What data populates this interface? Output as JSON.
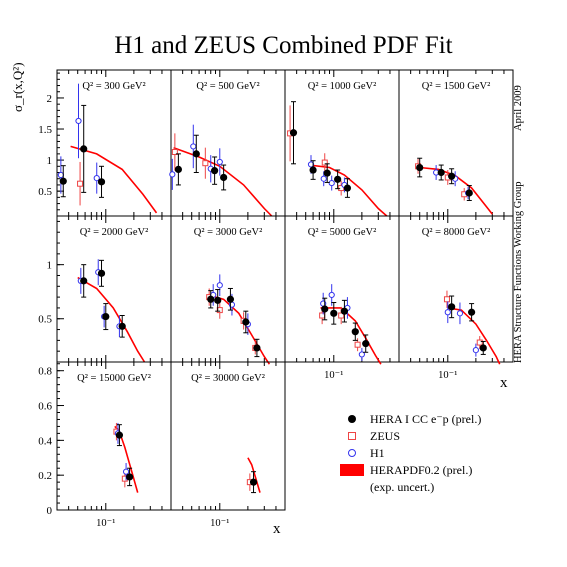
{
  "title": "H1 and ZEUS Combined PDF Fit",
  "side_note": {
    "date": "April 2009",
    "group": "HERA Structure Functions Working Group"
  },
  "y_axis_label": "σ_r(x,Q²)",
  "x_axis_label": "x",
  "colors": {
    "hera": "#000000",
    "zeus": "#ee4444",
    "h1": "#3333ee",
    "fit": "#ff0000"
  },
  "legend": [
    {
      "key": "hera",
      "label": "HERA I CC e⁻p (prel.)"
    },
    {
      "key": "zeus",
      "label": "ZEUS"
    },
    {
      "key": "h1",
      "label": "H1"
    },
    {
      "key": "fit",
      "label": "HERAPDF0.2 (prel.)"
    },
    {
      "key": "fit_note",
      "label": "(exp. uncert.)"
    }
  ],
  "chart_data": {
    "type": "scatter",
    "x_scale": "log",
    "xlim": [
      0.03,
      0.5
    ],
    "x_tick_label": "10⁻¹",
    "rows": [
      {
        "ylim": [
          0.1,
          2.45
        ],
        "yticks": [
          0.5,
          1,
          1.5,
          2
        ]
      },
      {
        "ylim": [
          0.1,
          1.45
        ],
        "yticks": [
          0.5,
          1
        ]
      },
      {
        "ylim": [
          0,
          0.85
        ],
        "yticks": [
          0,
          0.2,
          0.4,
          0.6,
          0.8
        ]
      }
    ],
    "panels": [
      {
        "label": "Q² = 300 GeV²",
        "row": 0,
        "col": 0,
        "fit": [
          [
            0.042,
            1.22
          ],
          [
            0.08,
            1.1
          ],
          [
            0.15,
            0.85
          ],
          [
            0.25,
            0.45
          ],
          [
            0.35,
            0.15
          ]
        ],
        "hera": [
          [
            0.035,
            0.66,
            0.25
          ],
          [
            0.058,
            1.18,
            0.7
          ],
          [
            0.09,
            0.65,
            0.25
          ]
        ],
        "zeus": [
          [
            0.053,
            0.62,
            0.35
          ]
        ],
        "h1": [
          [
            0.033,
            0.76,
            0.3
          ],
          [
            0.051,
            1.63,
            0.6
          ],
          [
            0.08,
            0.71,
            0.25
          ]
        ]
      },
      {
        "label": "Q² = 500 GeV²",
        "row": 0,
        "col": 1,
        "fit": [
          [
            0.032,
            1.2
          ],
          [
            0.06,
            1.05
          ],
          [
            0.1,
            0.9
          ],
          [
            0.18,
            0.6
          ],
          [
            0.3,
            0.22
          ],
          [
            0.36,
            0.1
          ]
        ],
        "hera": [
          [
            0.036,
            0.85,
            0.25
          ],
          [
            0.056,
            1.1,
            0.3
          ],
          [
            0.088,
            0.83,
            0.22
          ],
          [
            0.11,
            0.72,
            0.2
          ]
        ],
        "zeus": [
          [
            0.033,
            1.13,
            0.3
          ],
          [
            0.07,
            0.95,
            0.25
          ]
        ],
        "h1": [
          [
            0.031,
            0.77,
            0.25
          ],
          [
            0.052,
            1.22,
            0.35
          ],
          [
            0.08,
            0.86,
            0.22
          ],
          [
            0.1,
            0.97,
            0.22
          ]
        ]
      },
      {
        "label": "Q² = 1000 GeV²",
        "row": 0,
        "col": 2,
        "fit": [
          [
            0.055,
            0.92
          ],
          [
            0.09,
            0.88
          ],
          [
            0.13,
            0.76
          ],
          [
            0.2,
            0.52
          ],
          [
            0.3,
            0.22
          ],
          [
            0.37,
            0.1
          ]
        ],
        "hera": [
          [
            0.037,
            1.44,
            0.5
          ],
          [
            0.06,
            0.84,
            0.15
          ],
          [
            0.085,
            0.79,
            0.15
          ],
          [
            0.11,
            0.69,
            0.15
          ],
          [
            0.14,
            0.55,
            0.15
          ]
        ],
        "zeus": [
          [
            0.034,
            1.43,
            0.45
          ],
          [
            0.08,
            0.96,
            0.15
          ],
          [
            0.12,
            0.55,
            0.12
          ]
        ],
        "h1": [
          [
            0.057,
            0.93,
            0.15
          ],
          [
            0.078,
            0.7,
            0.12
          ],
          [
            0.095,
            0.63,
            0.12
          ],
          [
            0.13,
            0.6,
            0.12
          ]
        ]
      },
      {
        "label": "Q² = 1500 GeV²",
        "row": 0,
        "col": 3,
        "fit": [
          [
            0.05,
            0.88
          ],
          [
            0.08,
            0.85
          ],
          [
            0.12,
            0.75
          ],
          [
            0.18,
            0.55
          ],
          [
            0.26,
            0.25
          ],
          [
            0.3,
            0.13
          ]
        ],
        "hera": [
          [
            0.05,
            0.88,
            0.15
          ],
          [
            0.085,
            0.8,
            0.12
          ],
          [
            0.11,
            0.74,
            0.12
          ],
          [
            0.17,
            0.47,
            0.12
          ]
        ],
        "zeus": [
          [
            0.048,
            0.9,
            0.12
          ],
          [
            0.1,
            0.72,
            0.12
          ],
          [
            0.15,
            0.45,
            0.1
          ]
        ],
        "h1": [
          [
            0.075,
            0.8,
            0.12
          ],
          [
            0.12,
            0.7,
            0.12
          ],
          [
            0.165,
            0.47,
            0.1
          ]
        ]
      },
      {
        "label": "Q² = 2000 GeV²",
        "row": 1,
        "col": 0,
        "fit": [
          [
            0.05,
            0.88
          ],
          [
            0.08,
            0.78
          ],
          [
            0.12,
            0.6
          ],
          [
            0.17,
            0.38
          ],
          [
            0.22,
            0.2
          ],
          [
            0.26,
            0.1
          ]
        ],
        "hera": [
          [
            0.058,
            0.85,
            0.15
          ],
          [
            0.09,
            0.92,
            0.12
          ],
          [
            0.1,
            0.52,
            0.12
          ],
          [
            0.15,
            0.43,
            0.1
          ]
        ],
        "zeus": [],
        "h1": [
          [
            0.054,
            0.85,
            0.12
          ],
          [
            0.083,
            0.93,
            0.12
          ],
          [
            0.096,
            0.52,
            0.1
          ],
          [
            0.14,
            0.43,
            0.1
          ]
        ]
      },
      {
        "label": "Q² = 3000 GeV²",
        "row": 1,
        "col": 1,
        "fit": [
          [
            0.075,
            0.72
          ],
          [
            0.11,
            0.68
          ],
          [
            0.16,
            0.55
          ],
          [
            0.22,
            0.35
          ],
          [
            0.3,
            0.15
          ],
          [
            0.34,
            0.08
          ]
        ],
        "hera": [
          [
            0.08,
            0.68,
            0.08
          ],
          [
            0.095,
            0.67,
            0.1
          ],
          [
            0.13,
            0.68,
            0.1
          ],
          [
            0.19,
            0.47,
            0.1
          ],
          [
            0.25,
            0.23,
            0.08
          ]
        ],
        "zeus": [
          [
            0.077,
            0.7,
            0.08
          ],
          [
            0.1,
            0.58,
            0.08
          ],
          [
            0.18,
            0.48,
            0.08
          ],
          [
            0.24,
            0.23,
            0.06
          ]
        ],
        "h1": [
          [
            0.085,
            0.72,
            0.1
          ],
          [
            0.1,
            0.81,
            0.1
          ],
          [
            0.135,
            0.63,
            0.1
          ],
          [
            0.2,
            0.45,
            0.1
          ]
        ]
      },
      {
        "label": "Q² = 5000 GeV²",
        "row": 1,
        "col": 2,
        "fit": [
          [
            0.072,
            0.6
          ],
          [
            0.12,
            0.6
          ],
          [
            0.17,
            0.48
          ],
          [
            0.22,
            0.32
          ],
          [
            0.28,
            0.16
          ],
          [
            0.32,
            0.08
          ]
        ],
        "hera": [
          [
            0.08,
            0.59,
            0.1
          ],
          [
            0.1,
            0.55,
            0.1
          ],
          [
            0.13,
            0.57,
            0.1
          ],
          [
            0.17,
            0.38,
            0.08
          ],
          [
            0.22,
            0.27,
            0.08
          ]
        ],
        "zeus": [
          [
            0.075,
            0.53,
            0.08
          ],
          [
            0.12,
            0.53,
            0.08
          ],
          [
            0.18,
            0.26,
            0.06
          ]
        ],
        "h1": [
          [
            0.077,
            0.64,
            0.1
          ],
          [
            0.095,
            0.72,
            0.1
          ],
          [
            0.14,
            0.6,
            0.1
          ],
          [
            0.2,
            0.17,
            0.06
          ]
        ]
      },
      {
        "label": "Q² = 8000 GeV²",
        "row": 1,
        "col": 3,
        "fit": [
          [
            0.1,
            0.6
          ],
          [
            0.14,
            0.58
          ],
          [
            0.2,
            0.45
          ],
          [
            0.26,
            0.3
          ],
          [
            0.33,
            0.15
          ],
          [
            0.36,
            0.08
          ]
        ],
        "hera": [
          [
            0.11,
            0.61,
            0.1
          ],
          [
            0.18,
            0.56,
            0.08
          ],
          [
            0.24,
            0.23,
            0.06
          ]
        ],
        "zeus": [
          [
            0.098,
            0.68,
            0.08
          ],
          [
            0.22,
            0.28,
            0.06
          ]
        ],
        "h1": [
          [
            0.1,
            0.56,
            0.1
          ],
          [
            0.135,
            0.55,
            0.1
          ],
          [
            0.2,
            0.21,
            0.06
          ]
        ]
      },
      {
        "label": "Q² = 15000 GeV²",
        "row": 2,
        "col": 0,
        "fit": [
          [
            0.125,
            0.48
          ],
          [
            0.14,
            0.45
          ],
          [
            0.16,
            0.36
          ],
          [
            0.19,
            0.22
          ],
          [
            0.22,
            0.1
          ]
        ],
        "hera": [
          [
            0.14,
            0.43,
            0.06
          ],
          [
            0.18,
            0.19,
            0.05
          ]
        ],
        "zeus": [
          [
            0.13,
            0.45,
            0.05
          ],
          [
            0.16,
            0.18,
            0.05
          ]
        ],
        "h1": [
          [
            0.135,
            0.44,
            0.06
          ],
          [
            0.165,
            0.22,
            0.05
          ]
        ]
      },
      {
        "label": "Q² = 30000 GeV²",
        "row": 2,
        "col": 1,
        "fit": [
          [
            0.2,
            0.3
          ],
          [
            0.22,
            0.26
          ],
          [
            0.25,
            0.16
          ],
          [
            0.27,
            0.1
          ]
        ],
        "hera": [
          [
            0.23,
            0.16,
            0.06
          ]
        ],
        "zeus": [
          [
            0.21,
            0.16,
            0.05
          ]
        ],
        "h1": []
      }
    ]
  }
}
